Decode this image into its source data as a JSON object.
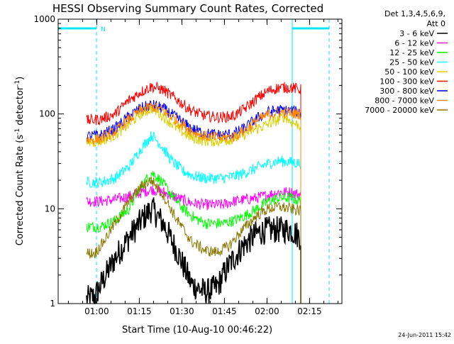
{
  "chart_data": {
    "type": "line",
    "title": "HESSI Observing Summary Count Rates, Corrected",
    "xlabel": "Start Time (10-Aug-10 00:46:22)",
    "ylabel_main": "Corrected Count Rate (s",
    "ylabel_exp1": "-1",
    "ylabel_mid": " detector",
    "ylabel_exp2": "-1",
    "ylabel_end": ")",
    "yscale": "log",
    "ylim": [
      1,
      1000
    ],
    "xlim_minutes": [
      0,
      100
    ],
    "x_ticks": [
      "01:00",
      "01:15",
      "01:30",
      "01:45",
      "02:00",
      "02:15"
    ],
    "x_tick_minutes": [
      13.6,
      28.6,
      43.6,
      58.6,
      73.6,
      88.6
    ],
    "y_ticks": [
      "1",
      "10",
      "100",
      "1000"
    ],
    "y_tick_values": [
      1,
      10,
      100,
      1000
    ],
    "legend_header": [
      "Det 1,3,4,5,6,9,",
      "Att 0"
    ],
    "legend_placement": "right",
    "footer_date": "24-Jun-2011 15:42",
    "flag_marker": "N",
    "flags": {
      "color": "#00e8f0",
      "segments": [
        [
          0,
          13.5
        ],
        [
          82.5,
          95.5
        ]
      ],
      "level": 800,
      "solid_lines": [
        0,
        82.5
      ],
      "dashed_lines": [
        13.5,
        95.5
      ]
    },
    "data_range_minutes": [
      10,
      85.5
    ],
    "series": [
      {
        "name": "3 - 6 keV",
        "color": "#000000",
        "values": [
          [
            10,
            1.1
          ],
          [
            13,
            1.2
          ],
          [
            16,
            1.8
          ],
          [
            20,
            3
          ],
          [
            25,
            5
          ],
          [
            30,
            8
          ],
          [
            33,
            10
          ],
          [
            37,
            7
          ],
          [
            42,
            3.5
          ],
          [
            47,
            1.6
          ],
          [
            52,
            1.3
          ],
          [
            56,
            1.5
          ],
          [
            60,
            2.5
          ],
          [
            65,
            4
          ],
          [
            70,
            5.5
          ],
          [
            74,
            6
          ],
          [
            78,
            6
          ],
          [
            82,
            6
          ],
          [
            85.5,
            5
          ]
        ]
      },
      {
        "name": "6 - 12 keV",
        "color": "#ff00ff",
        "values": [
          [
            10,
            12
          ],
          [
            15,
            12
          ],
          [
            20,
            12.5
          ],
          [
            25,
            13.5
          ],
          [
            30,
            15
          ],
          [
            33,
            16
          ],
          [
            37,
            15
          ],
          [
            42,
            13
          ],
          [
            47,
            11.5
          ],
          [
            52,
            11
          ],
          [
            58,
            11
          ],
          [
            62,
            12
          ],
          [
            66,
            12.5
          ],
          [
            70,
            13
          ],
          [
            74,
            14
          ],
          [
            78,
            15
          ],
          [
            82,
            15
          ],
          [
            85.5,
            14
          ]
        ]
      },
      {
        "name": "12 - 25 keV",
        "color": "#00ff00",
        "values": [
          [
            10,
            6.5
          ],
          [
            15,
            6.5
          ],
          [
            20,
            7.5
          ],
          [
            25,
            10
          ],
          [
            29,
            17
          ],
          [
            33,
            24
          ],
          [
            36,
            20
          ],
          [
            40,
            14
          ],
          [
            44,
            10
          ],
          [
            48,
            8
          ],
          [
            52,
            7
          ],
          [
            58,
            7
          ],
          [
            62,
            7.5
          ],
          [
            66,
            8.5
          ],
          [
            70,
            10
          ],
          [
            74,
            12
          ],
          [
            78,
            13
          ],
          [
            82,
            13
          ],
          [
            85.5,
            12
          ]
        ]
      },
      {
        "name": "25 - 50 keV",
        "color": "#00ffff",
        "values": [
          [
            10,
            19
          ],
          [
            15,
            19
          ],
          [
            20,
            21
          ],
          [
            25,
            28
          ],
          [
            29,
            42
          ],
          [
            33,
            60
          ],
          [
            36,
            48
          ],
          [
            40,
            32
          ],
          [
            44,
            25
          ],
          [
            48,
            22
          ],
          [
            52,
            21
          ],
          [
            58,
            21
          ],
          [
            62,
            22
          ],
          [
            66,
            24
          ],
          [
            70,
            27
          ],
          [
            74,
            30
          ],
          [
            78,
            32
          ],
          [
            82,
            31
          ],
          [
            85.5,
            30
          ]
        ]
      },
      {
        "name": "50 - 100 keV",
        "color": "#d8d000",
        "values": [
          [
            10,
            50
          ],
          [
            15,
            52
          ],
          [
            20,
            60
          ],
          [
            25,
            78
          ],
          [
            29,
            100
          ],
          [
            33,
            115
          ],
          [
            37,
            95
          ],
          [
            42,
            70
          ],
          [
            47,
            56
          ],
          [
            52,
            52
          ],
          [
            58,
            52
          ],
          [
            62,
            55
          ],
          [
            66,
            62
          ],
          [
            70,
            70
          ],
          [
            74,
            78
          ],
          [
            78,
            88
          ],
          [
            80,
            95
          ],
          [
            82,
            82
          ],
          [
            85.5,
            75
          ]
        ]
      },
      {
        "name": "100 - 300 keV",
        "color": "#ff0000",
        "values": [
          [
            10,
            85
          ],
          [
            15,
            88
          ],
          [
            20,
            100
          ],
          [
            25,
            140
          ],
          [
            29,
            170
          ],
          [
            33,
            195
          ],
          [
            37,
            180
          ],
          [
            42,
            140
          ],
          [
            47,
            108
          ],
          [
            52,
            95
          ],
          [
            58,
            92
          ],
          [
            62,
            96
          ],
          [
            66,
            115
          ],
          [
            70,
            145
          ],
          [
            74,
            175
          ],
          [
            78,
            190
          ],
          [
            82,
            190
          ],
          [
            85.5,
            180
          ]
        ]
      },
      {
        "name": "300 - 800 keV",
        "color": "#0000ff",
        "values": [
          [
            10,
            58
          ],
          [
            15,
            60
          ],
          [
            20,
            70
          ],
          [
            25,
            95
          ],
          [
            29,
            115
          ],
          [
            33,
            125
          ],
          [
            37,
            115
          ],
          [
            42,
            90
          ],
          [
            47,
            70
          ],
          [
            52,
            62
          ],
          [
            58,
            60
          ],
          [
            62,
            62
          ],
          [
            66,
            72
          ],
          [
            70,
            90
          ],
          [
            74,
            105
          ],
          [
            78,
            110
          ],
          [
            82,
            108
          ],
          [
            85.5,
            105
          ]
        ]
      },
      {
        "name": "800 - 7000 keV",
        "color": "#ff8800",
        "values": [
          [
            10,
            53
          ],
          [
            15,
            55
          ],
          [
            20,
            65
          ],
          [
            25,
            88
          ],
          [
            29,
            108
          ],
          [
            33,
            120
          ],
          [
            37,
            108
          ],
          [
            42,
            85
          ],
          [
            47,
            66
          ],
          [
            52,
            58
          ],
          [
            58,
            56
          ],
          [
            62,
            58
          ],
          [
            66,
            68
          ],
          [
            70,
            85
          ],
          [
            74,
            98
          ],
          [
            78,
            104
          ],
          [
            82,
            102
          ],
          [
            85.5,
            100
          ]
        ]
      },
      {
        "name": "7000 - 20000 keV",
        "color": "#887700",
        "values": [
          [
            10,
            3.4
          ],
          [
            13,
            3.4
          ],
          [
            16,
            4.5
          ],
          [
            20,
            7
          ],
          [
            25,
            12
          ],
          [
            30,
            18
          ],
          [
            33,
            20
          ],
          [
            37,
            14
          ],
          [
            42,
            7.5
          ],
          [
            47,
            4.5
          ],
          [
            52,
            3.6
          ],
          [
            56,
            3.5
          ],
          [
            60,
            4
          ],
          [
            65,
            6
          ],
          [
            70,
            8.5
          ],
          [
            74,
            10
          ],
          [
            78,
            10.5
          ],
          [
            82,
            10
          ],
          [
            85.5,
            9.5
          ]
        ]
      }
    ]
  }
}
